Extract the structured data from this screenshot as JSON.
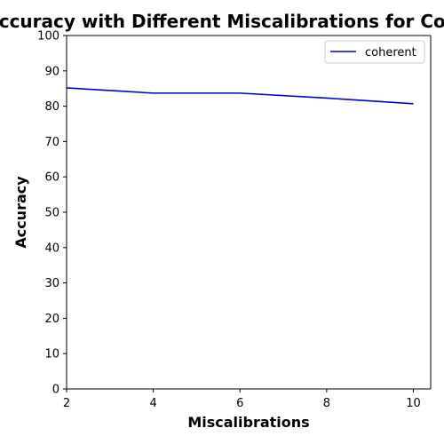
{
  "chart_data": {
    "type": "line",
    "title": "Accuracy with Different Miscalibrations for Coherent",
    "xlabel": "Miscalibrations",
    "ylabel": "Accuracy",
    "xlim": [
      2,
      10.4
    ],
    "ylim": [
      0,
      100
    ],
    "xticks": [
      2,
      4,
      6,
      8,
      10
    ],
    "yticks": [
      0,
      10,
      20,
      30,
      40,
      50,
      60,
      70,
      80,
      90,
      100
    ],
    "grid": false,
    "legend_position": "top-right",
    "series": [
      {
        "name": "coherent",
        "color": "#0000cc",
        "x": [
          2,
          4,
          6,
          8,
          10
        ],
        "y": [
          85.2,
          83.7,
          83.7,
          82.3,
          80.7
        ]
      }
    ]
  }
}
